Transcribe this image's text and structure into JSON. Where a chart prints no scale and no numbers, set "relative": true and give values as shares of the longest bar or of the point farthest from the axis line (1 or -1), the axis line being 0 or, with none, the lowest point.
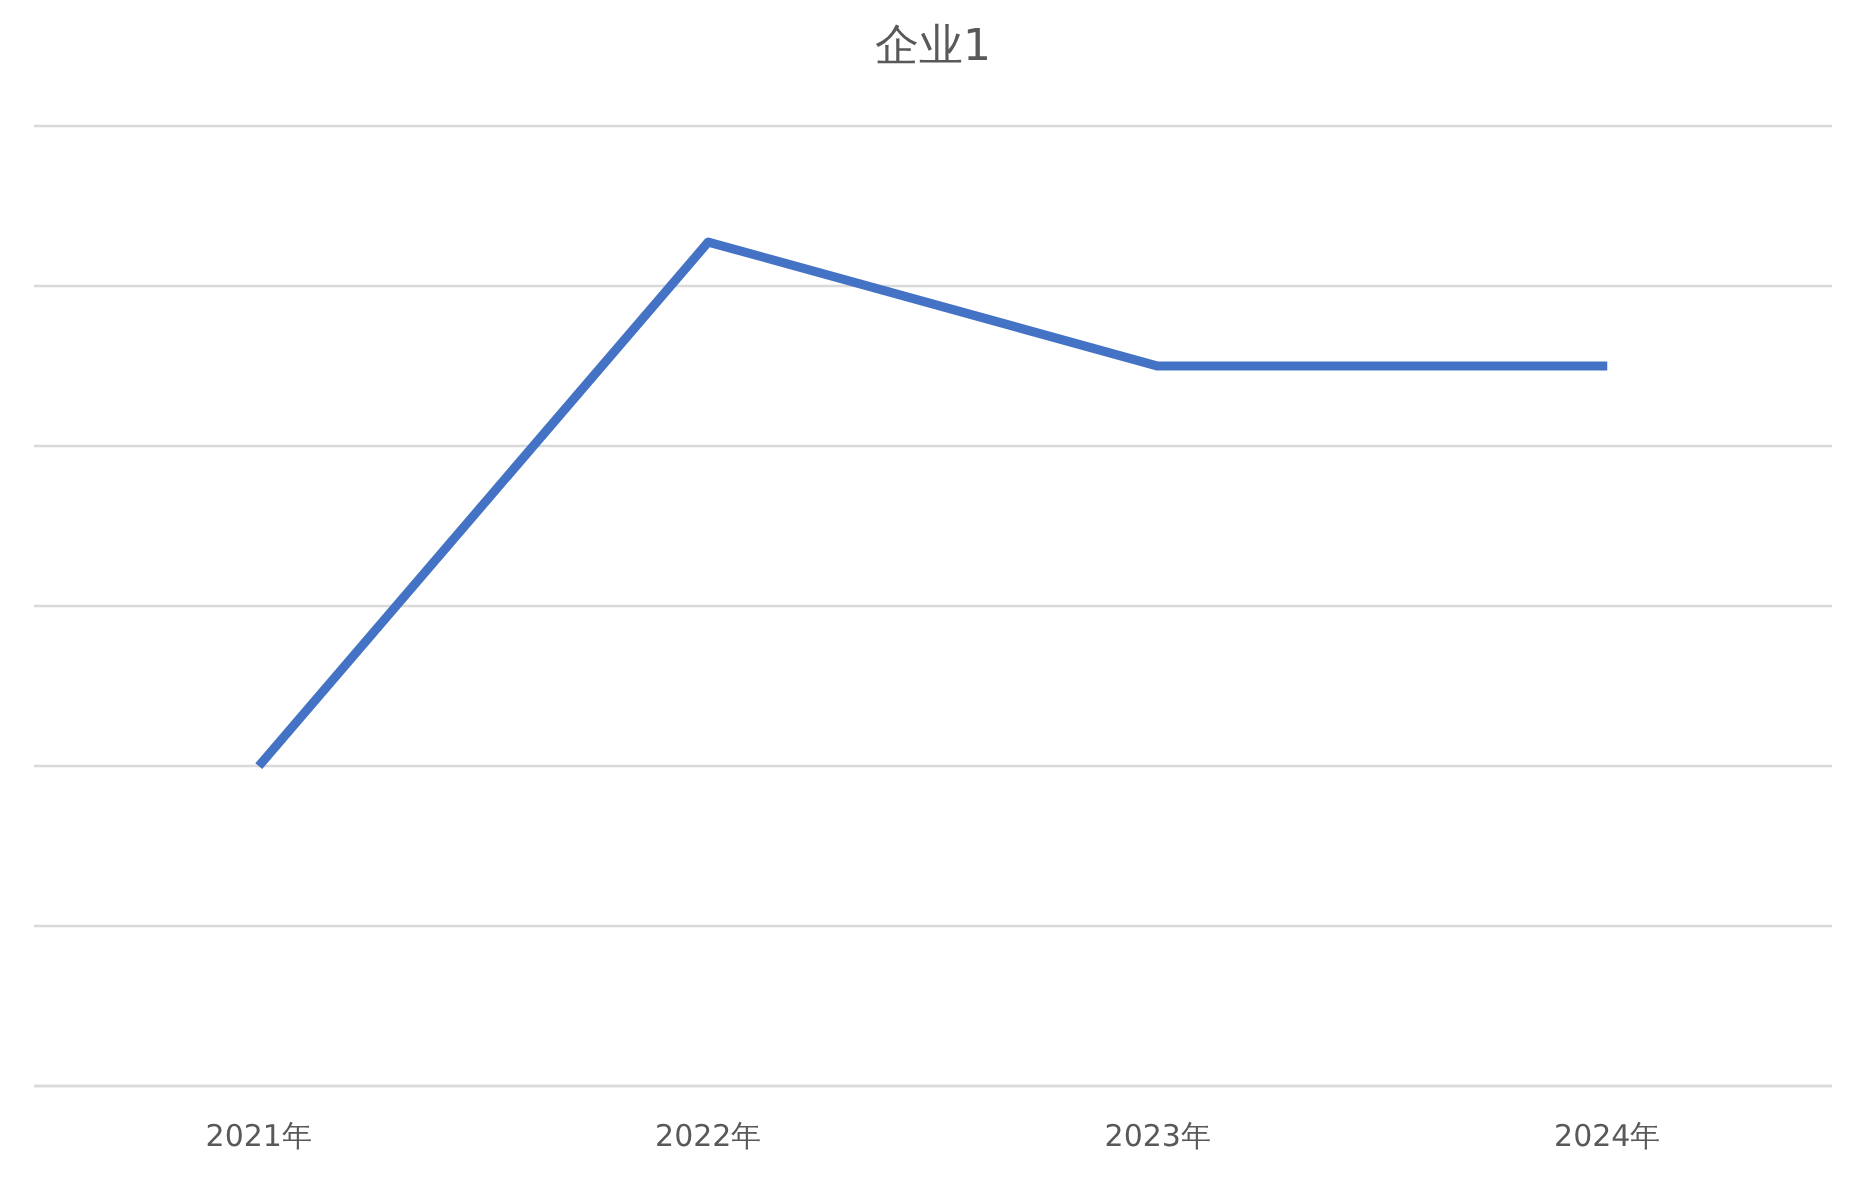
{
  "chart_data": {
    "type": "line",
    "title": "企业1",
    "categories": [
      "2021年",
      "2022年",
      "2023年",
      "2024年"
    ],
    "values": [
      0.379,
      1,
      0.853,
      0.853
    ],
    "color": "#4472c4",
    "relative": true,
    "grid": "y"
  }
}
